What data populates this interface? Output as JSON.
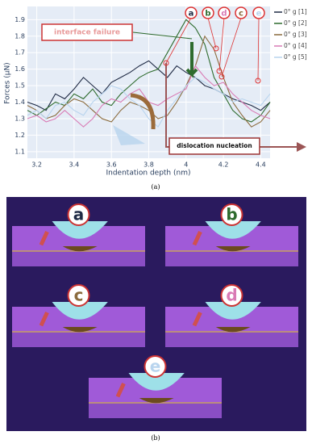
{
  "chart_data": {
    "type": "line",
    "x_label": "Indentation depth (nm)",
    "y_label": "Forces (μN)",
    "x": [
      3.15,
      3.2,
      3.25,
      3.3,
      3.35,
      3.4,
      3.45,
      3.5,
      3.55,
      3.6,
      3.65,
      3.7,
      3.75,
      3.8,
      3.85,
      3.9,
      3.95,
      4.0,
      4.05,
      4.1,
      4.15,
      4.2,
      4.25,
      4.3,
      4.35,
      4.4,
      4.45
    ],
    "series": [
      {
        "name": "0° g [1]",
        "color": "#1f2a44",
        "values": [
          1.4,
          1.38,
          1.35,
          1.45,
          1.42,
          1.48,
          1.55,
          1.5,
          1.45,
          1.52,
          1.55,
          1.58,
          1.62,
          1.65,
          1.6,
          1.55,
          1.62,
          1.58,
          1.55,
          1.5,
          1.48,
          1.45,
          1.42,
          1.4,
          1.38,
          1.35,
          1.4
        ]
      },
      {
        "name": "0° g [2]",
        "color": "#2e6b2e",
        "values": [
          1.35,
          1.32,
          1.36,
          1.4,
          1.38,
          1.45,
          1.42,
          1.48,
          1.4,
          1.38,
          1.45,
          1.5,
          1.55,
          1.58,
          1.6,
          1.7,
          1.8,
          1.9,
          1.85,
          1.75,
          1.55,
          1.45,
          1.35,
          1.3,
          1.28,
          1.32,
          1.4
        ]
      },
      {
        "name": "0° g [3]",
        "color": "#8b6b3d",
        "values": [
          1.38,
          1.35,
          1.3,
          1.32,
          1.38,
          1.42,
          1.4,
          1.35,
          1.3,
          1.28,
          1.35,
          1.4,
          1.38,
          1.35,
          1.3,
          1.32,
          1.4,
          1.5,
          1.62,
          1.8,
          1.72,
          1.55,
          1.4,
          1.32,
          1.25,
          1.28,
          1.35
        ]
      },
      {
        "name": "0° g [4]",
        "color": "#d97bb5",
        "values": [
          1.3,
          1.32,
          1.28,
          1.3,
          1.35,
          1.3,
          1.25,
          1.3,
          1.38,
          1.42,
          1.4,
          1.45,
          1.48,
          1.4,
          1.38,
          1.42,
          1.45,
          1.48,
          1.62,
          1.55,
          1.5,
          1.52,
          1.45,
          1.4,
          1.35,
          1.32,
          1.3
        ]
      },
      {
        "name": "0° g [5]",
        "color": "#b8d4ee",
        "values": [
          1.32,
          1.35,
          1.3,
          1.38,
          1.4,
          1.35,
          1.32,
          1.4,
          1.45,
          1.5,
          1.48,
          1.42,
          1.38,
          1.3,
          1.25,
          1.35,
          1.42,
          1.5,
          1.55,
          1.52,
          1.48,
          1.45,
          1.4,
          1.42,
          1.4,
          1.38,
          1.45
        ]
      }
    ],
    "xlim": [
      3.15,
      4.45
    ],
    "ylim": [
      1.06,
      1.98
    ],
    "xticks": [
      3.2,
      3.4,
      3.6,
      3.8,
      4,
      4.2,
      4.4
    ],
    "yticks": [
      1.1,
      1.2,
      1.3,
      1.4,
      1.5,
      1.6,
      1.7,
      1.8,
      1.9
    ],
    "grid": true,
    "legend": "right",
    "annotations": [
      "interface failure",
      "dislocation nucleation"
    ],
    "point_labels": [
      "a",
      "b",
      "c",
      "d",
      "e"
    ]
  },
  "panel_a": "(a)",
  "panel_b": "(b)",
  "snapshots": [
    "a",
    "b",
    "c",
    "d",
    "e"
  ]
}
